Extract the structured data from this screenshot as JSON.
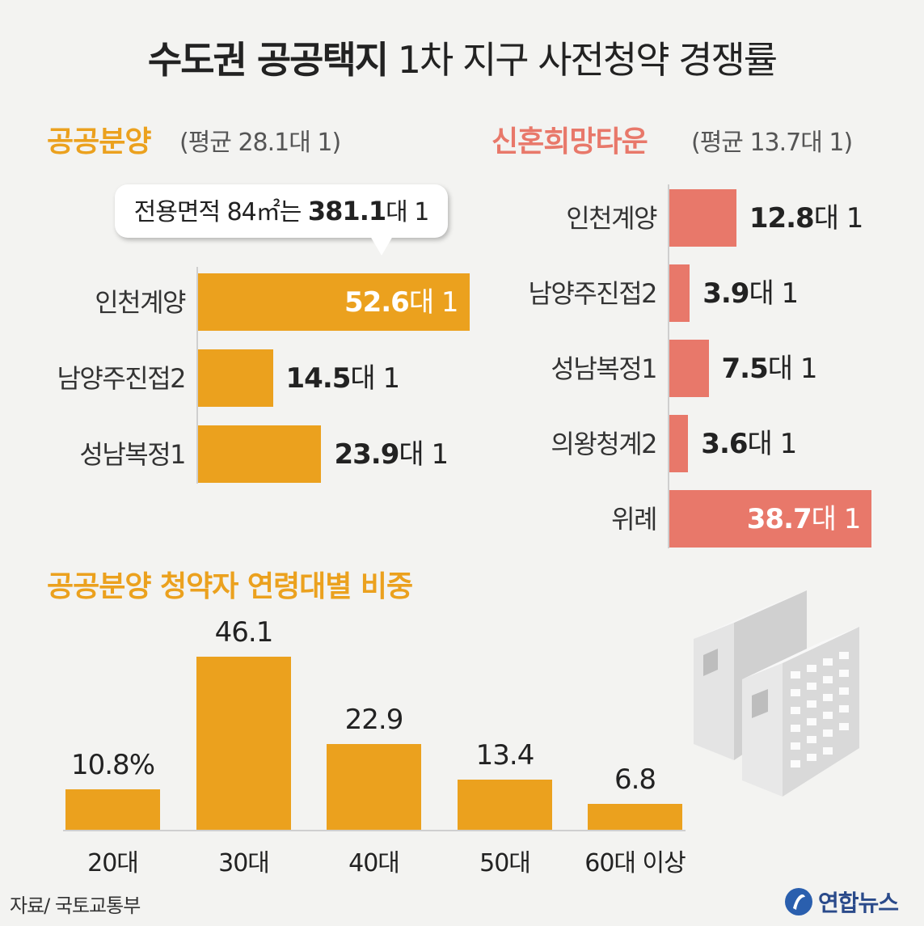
{
  "title": {
    "bold": "수도권 공공택지",
    "light": "1차 지구 사전청약 경쟁률"
  },
  "colors": {
    "orange": "#eba11e",
    "salmon": "#e8786a"
  },
  "public_sale": {
    "heading": "공공분양",
    "avg": "(평균 28.1대 1)",
    "callout": {
      "prefix": "전용면적 84㎡는 ",
      "value": "381.1",
      "unit": "대 1"
    }
  },
  "newlywed": {
    "heading": "신혼희망타운",
    "avg": "(평균 13.7대 1)"
  },
  "age_section": {
    "heading": "공공분양 청약자 연령대별 비중"
  },
  "chart_data": [
    {
      "type": "bar",
      "orientation": "horizontal",
      "title": "공공분양",
      "categories": [
        "인천계양",
        "남양주진접2",
        "성남복정1"
      ],
      "values": [
        52.6,
        14.5,
        23.9
      ],
      "value_labels": [
        "52.6",
        "14.5",
        "23.9"
      ],
      "unit": "대 1",
      "color": "#eba11e"
    },
    {
      "type": "bar",
      "orientation": "horizontal",
      "title": "신혼희망타운",
      "categories": [
        "인천계양",
        "남양주진접2",
        "성남복정1",
        "의왕청계2",
        "위례"
      ],
      "values": [
        12.8,
        3.9,
        7.5,
        3.6,
        38.7
      ],
      "value_labels": [
        "12.8",
        "3.9",
        "7.5",
        "3.6",
        "38.7"
      ],
      "unit": "대 1",
      "color": "#e8786a"
    },
    {
      "type": "bar",
      "orientation": "vertical",
      "title": "공공분양 청약자 연령대별 비중",
      "categories": [
        "20대",
        "30대",
        "40대",
        "50대",
        "60대 이상"
      ],
      "values": [
        10.8,
        46.1,
        22.9,
        13.4,
        6.8
      ],
      "value_labels": [
        "10.8%",
        "46.1",
        "22.9",
        "13.4",
        "6.8"
      ],
      "color": "#eba11e"
    }
  ],
  "footer": {
    "source": "자료/ 국토교통부",
    "logo": "연합뉴스"
  },
  "icons": [
    "apartment-buildings-icon",
    "yonhap-logo-icon"
  ]
}
